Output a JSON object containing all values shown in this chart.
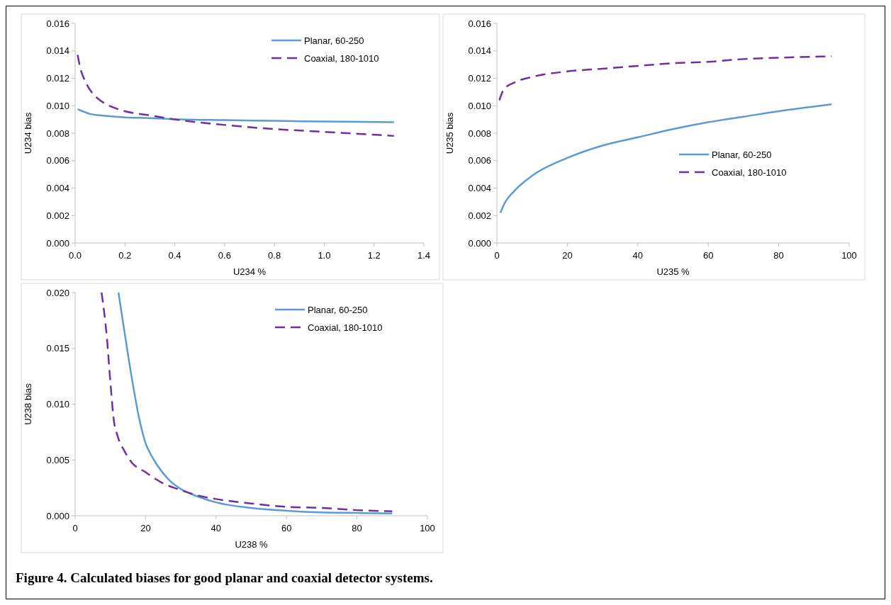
{
  "chart_data": [
    {
      "type": "line",
      "xlabel": "U234 %",
      "ylabel": "U234 bias",
      "xlim": [
        0,
        1.4
      ],
      "ylim": [
        0,
        0.016
      ],
      "xticks": [
        {
          "value": 0,
          "label": "0.0"
        },
        {
          "value": 0.2,
          "label": "0.2"
        },
        {
          "value": 0.4,
          "label": "0.4"
        },
        {
          "value": 0.6,
          "label": "0.6"
        },
        {
          "value": 0.8,
          "label": "0.8"
        },
        {
          "value": 1,
          "label": "1.0"
        },
        {
          "value": 1.2,
          "label": "1.2"
        },
        {
          "value": 1.4,
          "label": "1.4"
        }
      ],
      "yticks": [
        {
          "value": 0,
          "label": "0.000"
        },
        {
          "value": 0.002,
          "label": "0.002"
        },
        {
          "value": 0.004,
          "label": "0.004"
        },
        {
          "value": 0.006,
          "label": "0.006"
        },
        {
          "value": 0.008,
          "label": "0.008"
        },
        {
          "value": 0.01,
          "label": "0.010"
        },
        {
          "value": 0.012,
          "label": "0.012"
        },
        {
          "value": 0.014,
          "label": "0.014"
        },
        {
          "value": 0.016,
          "label": "0.016"
        }
      ],
      "grid": false,
      "legend": "top right",
      "series": [
        {
          "name": "Planar, 60-250",
          "color": "#5b9bd5",
          "line_style": "solid",
          "x": [
            0.01,
            0.03,
            0.06,
            0.1,
            0.2,
            0.3,
            0.4,
            0.6,
            0.8,
            1.0,
            1.28
          ],
          "values": [
            0.00975,
            0.0096,
            0.0094,
            0.0093,
            0.00915,
            0.0091,
            0.00902,
            0.00895,
            0.0089,
            0.00885,
            0.0088
          ]
        },
        {
          "name": "Coaxial, 180-1010",
          "color": "#7030a0",
          "line_style": "dashed",
          "x": [
            0.01,
            0.02,
            0.04,
            0.07,
            0.1,
            0.15,
            0.2,
            0.3,
            0.4,
            0.6,
            0.8,
            1.0,
            1.28
          ],
          "values": [
            0.0137,
            0.0128,
            0.0118,
            0.0109,
            0.0104,
            0.0099,
            0.0096,
            0.0093,
            0.009,
            0.0086,
            0.0083,
            0.0081,
            0.0078
          ]
        }
      ]
    },
    {
      "type": "line",
      "xlabel": "U235 %",
      "ylabel": "U235 bias",
      "xlim": [
        0,
        100
      ],
      "ylim": [
        0,
        0.016
      ],
      "xticks": [
        0,
        20,
        40,
        60,
        80,
        100
      ],
      "yticks": [
        {
          "value": 0,
          "label": "0.000"
        },
        {
          "value": 0.002,
          "label": "0.002"
        },
        {
          "value": 0.004,
          "label": "0.004"
        },
        {
          "value": 0.006,
          "label": "0.006"
        },
        {
          "value": 0.008,
          "label": "0.008"
        },
        {
          "value": 0.01,
          "label": "0.010"
        },
        {
          "value": 0.012,
          "label": "0.012"
        },
        {
          "value": 0.014,
          "label": "0.014"
        },
        {
          "value": 0.016,
          "label": "0.016"
        }
      ],
      "grid": false,
      "legend": "right",
      "series": [
        {
          "name": "Planar, 60-250",
          "color": "#5b9bd5",
          "line_style": "solid",
          "x": [
            1,
            2,
            5,
            10,
            20,
            30,
            40,
            50,
            60,
            70,
            80,
            95
          ],
          "values": [
            0.0022,
            0.0028,
            0.0038,
            0.0049,
            0.0062,
            0.0071,
            0.0077,
            0.0083,
            0.0088,
            0.0092,
            0.0096,
            0.0101
          ]
        },
        {
          "name": "Coaxial, 180-1010",
          "color": "#7030a0",
          "line_style": "dashed",
          "x": [
            0.7,
            2,
            5,
            10,
            20,
            30,
            40,
            50,
            60,
            70,
            80,
            95
          ],
          "values": [
            0.0104,
            0.0112,
            0.0117,
            0.0121,
            0.0125,
            0.0127,
            0.0129,
            0.0131,
            0.0132,
            0.0134,
            0.0135,
            0.0136
          ]
        }
      ]
    },
    {
      "type": "line",
      "xlabel": "U238 %",
      "ylabel": "U238 bias",
      "xlim": [
        0,
        100
      ],
      "ylim": [
        0,
        0.02
      ],
      "xticks": [
        0,
        20,
        40,
        60,
        80,
        100
      ],
      "yticks": [
        {
          "value": 0,
          "label": "0.000"
        },
        {
          "value": 0.005,
          "label": "0.005"
        },
        {
          "value": 0.01,
          "label": "0.010"
        },
        {
          "value": 0.015,
          "label": "0.015"
        },
        {
          "value": 0.02,
          "label": "0.020"
        }
      ],
      "grid": false,
      "legend": "top right",
      "annotations": [
        "Figure 4. Calculated biases for good planar and coaxial detector systems."
      ],
      "series": [
        {
          "name": "Planar, 60-250",
          "color": "#5b9bd5",
          "line_style": "solid",
          "x": [
            12.3,
            14,
            16,
            18,
            20,
            22,
            25,
            27,
            30,
            35,
            40,
            50,
            60,
            70,
            80,
            90
          ],
          "values": [
            0.02,
            0.0165,
            0.0125,
            0.009,
            0.0065,
            0.0052,
            0.0038,
            0.0031,
            0.0024,
            0.0017,
            0.0012,
            0.0007,
            0.00045,
            0.0003,
            0.00025,
            0.0002
          ]
        },
        {
          "name": "Coaxial, 180-1010",
          "color": "#7030a0",
          "line_style": "dashed",
          "x": [
            7.5,
            9,
            10,
            11,
            12,
            14,
            16,
            20,
            25,
            30,
            35,
            40,
            50,
            60,
            70,
            80,
            90
          ],
          "values": [
            0.02,
            0.016,
            0.012,
            0.0085,
            0.0072,
            0.0058,
            0.0048,
            0.0039,
            0.0029,
            0.0023,
            0.0018,
            0.0015,
            0.0011,
            0.0008,
            0.0007,
            0.0005,
            0.0004
          ]
        }
      ]
    }
  ]
}
